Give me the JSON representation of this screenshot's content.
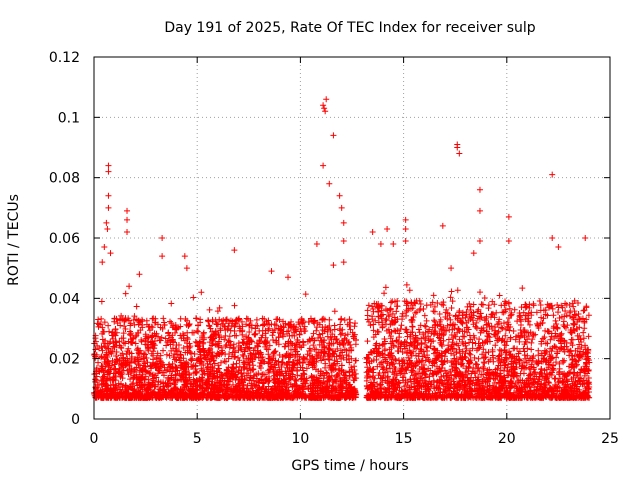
{
  "chart_data": {
    "type": "scatter",
    "title": "Day 191 of 2025, Rate Of TEC Index for receiver sulp",
    "xlabel": "GPS time / hours",
    "ylabel": "ROTI / TECUs",
    "xlim": [
      0,
      25
    ],
    "ylim": [
      0,
      0.12
    ],
    "xticks": [
      0,
      5,
      10,
      15,
      20,
      25
    ],
    "xtick_labels": [
      "0",
      "5",
      "10",
      "15",
      "20",
      "25"
    ],
    "yticks": [
      0,
      0.02,
      0.04,
      0.06,
      0.08,
      0.1,
      0.12
    ],
    "ytick_labels": [
      "0",
      "0.02",
      "0.04",
      "0.06",
      "0.08",
      "0.1",
      "0.12"
    ],
    "grid": true,
    "marker": "+",
    "color": "#ff0000",
    "series": [
      {
        "name": "ROTI",
        "segments": [
          {
            "x_start": 0.0,
            "x_end": 12.7,
            "typical_min": 0.007,
            "typical_max": 0.03
          },
          {
            "x_start": 13.2,
            "x_end": 24.0,
            "typical_min": 0.007,
            "typical_max": 0.035
          }
        ],
        "notable_points": [
          {
            "x": 0.2,
            "y": 0.033
          },
          {
            "x": 0.4,
            "y": 0.052
          },
          {
            "x": 0.5,
            "y": 0.057
          },
          {
            "x": 0.6,
            "y": 0.065
          },
          {
            "x": 0.7,
            "y": 0.084
          },
          {
            "x": 0.7,
            "y": 0.082
          },
          {
            "x": 0.7,
            "y": 0.074
          },
          {
            "x": 0.7,
            "y": 0.07
          },
          {
            "x": 0.65,
            "y": 0.063
          },
          {
            "x": 0.8,
            "y": 0.055
          },
          {
            "x": 1.6,
            "y": 0.069
          },
          {
            "x": 1.6,
            "y": 0.066
          },
          {
            "x": 1.6,
            "y": 0.062
          },
          {
            "x": 1.7,
            "y": 0.044
          },
          {
            "x": 2.2,
            "y": 0.048
          },
          {
            "x": 3.3,
            "y": 0.06
          },
          {
            "x": 3.3,
            "y": 0.054
          },
          {
            "x": 4.4,
            "y": 0.054
          },
          {
            "x": 4.5,
            "y": 0.05
          },
          {
            "x": 5.2,
            "y": 0.042
          },
          {
            "x": 6.8,
            "y": 0.056
          },
          {
            "x": 8.6,
            "y": 0.049
          },
          {
            "x": 9.4,
            "y": 0.047
          },
          {
            "x": 10.8,
            "y": 0.058
          },
          {
            "x": 11.1,
            "y": 0.104
          },
          {
            "x": 11.2,
            "y": 0.102
          },
          {
            "x": 11.25,
            "y": 0.106
          },
          {
            "x": 11.15,
            "y": 0.103
          },
          {
            "x": 11.1,
            "y": 0.084
          },
          {
            "x": 11.4,
            "y": 0.078
          },
          {
            "x": 11.6,
            "y": 0.094
          },
          {
            "x": 11.9,
            "y": 0.074
          },
          {
            "x": 12.0,
            "y": 0.07
          },
          {
            "x": 12.1,
            "y": 0.065
          },
          {
            "x": 12.1,
            "y": 0.059
          },
          {
            "x": 11.6,
            "y": 0.051
          },
          {
            "x": 12.1,
            "y": 0.052
          },
          {
            "x": 13.5,
            "y": 0.062
          },
          {
            "x": 13.9,
            "y": 0.058
          },
          {
            "x": 14.2,
            "y": 0.063
          },
          {
            "x": 14.5,
            "y": 0.058
          },
          {
            "x": 15.1,
            "y": 0.066
          },
          {
            "x": 15.1,
            "y": 0.063
          },
          {
            "x": 15.1,
            "y": 0.059
          },
          {
            "x": 16.9,
            "y": 0.064
          },
          {
            "x": 17.6,
            "y": 0.091
          },
          {
            "x": 17.6,
            "y": 0.09
          },
          {
            "x": 17.7,
            "y": 0.088
          },
          {
            "x": 17.3,
            "y": 0.05
          },
          {
            "x": 18.4,
            "y": 0.055
          },
          {
            "x": 18.7,
            "y": 0.076
          },
          {
            "x": 18.7,
            "y": 0.069
          },
          {
            "x": 18.7,
            "y": 0.059
          },
          {
            "x": 20.1,
            "y": 0.067
          },
          {
            "x": 20.1,
            "y": 0.059
          },
          {
            "x": 22.2,
            "y": 0.081
          },
          {
            "x": 22.2,
            "y": 0.06
          },
          {
            "x": 22.5,
            "y": 0.057
          },
          {
            "x": 23.8,
            "y": 0.06
          }
        ]
      }
    ]
  }
}
